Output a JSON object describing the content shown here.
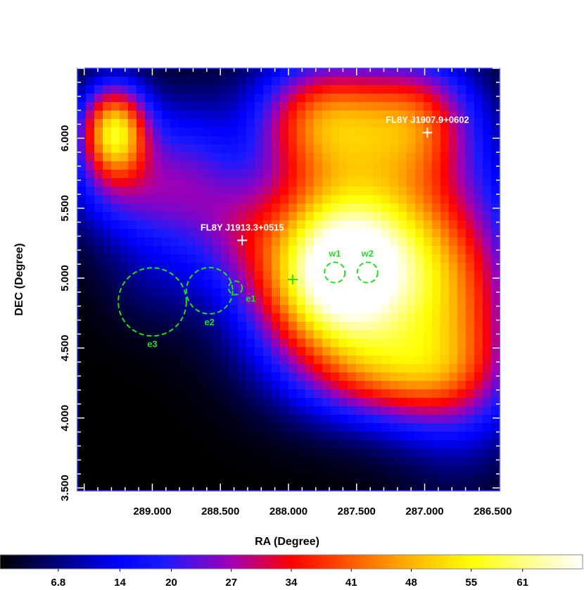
{
  "chart_data": {
    "type": "heatmap",
    "xlabel": "RA (Degree)",
    "ylabel": "DEC (Degree)",
    "xlim": [
      289.55,
      286.45
    ],
    "ylim": [
      3.48,
      6.5
    ],
    "x_ticks": [
      {
        "value": 289.0,
        "label": "289.000"
      },
      {
        "value": 288.5,
        "label": "288.500"
      },
      {
        "value": 288.0,
        "label": "288.000"
      },
      {
        "value": 287.5,
        "label": "287.500"
      },
      {
        "value": 287.0,
        "label": "287.000"
      },
      {
        "value": 286.5,
        "label": "286.500"
      }
    ],
    "y_ticks": [
      {
        "value": 3.5,
        "label": "3.500"
      },
      {
        "value": 4.0,
        "label": "4.000"
      },
      {
        "value": 4.5,
        "label": "4.500"
      },
      {
        "value": 5.0,
        "label": "5.000"
      },
      {
        "value": 5.5,
        "label": "5.500"
      },
      {
        "value": 6.0,
        "label": "6.000"
      }
    ],
    "colorbar": {
      "min": 0,
      "max": 68,
      "tick_values": [
        6.8,
        14,
        20,
        27,
        34,
        41,
        48,
        55,
        61
      ],
      "tick_labels": [
        "6.8",
        "14",
        "20",
        "27",
        "34",
        "41",
        "48",
        "55",
        "61"
      ],
      "colormap_stops": [
        {
          "v": 0,
          "color": "#000000"
        },
        {
          "v": 14,
          "color": "#0000ff"
        },
        {
          "v": 19,
          "color": "#1a1aff"
        },
        {
          "v": 27,
          "color": "#a000b4"
        },
        {
          "v": 34,
          "color": "#ff0000"
        },
        {
          "v": 41,
          "color": "#ff5a00"
        },
        {
          "v": 48,
          "color": "#ffb400"
        },
        {
          "v": 55,
          "color": "#ffff00"
        },
        {
          "v": 61,
          "color": "#ffff80"
        },
        {
          "v": 68,
          "color": "#ffffff"
        }
      ]
    },
    "intensity_components": [
      {
        "ra": 287.62,
        "dec": 5.0,
        "amp": 66,
        "sx": 0.45,
        "sy": 0.45
      },
      {
        "ra": 287.3,
        "dec": 5.55,
        "amp": 22,
        "sx": 0.55,
        "sy": 0.55
      },
      {
        "ra": 287.75,
        "dec": 6.15,
        "amp": 34,
        "sx": 0.35,
        "sy": 0.3
      },
      {
        "ra": 287.05,
        "dec": 6.15,
        "amp": 26,
        "sx": 0.3,
        "sy": 0.3
      },
      {
        "ra": 286.75,
        "dec": 4.7,
        "amp": 30,
        "sx": 0.35,
        "sy": 0.6
      },
      {
        "ra": 287.2,
        "dec": 4.3,
        "amp": 24,
        "sx": 0.45,
        "sy": 0.25
      },
      {
        "ra": 289.28,
        "dec": 6.05,
        "amp": 52,
        "sx": 0.18,
        "sy": 0.24
      },
      {
        "ra": 289.15,
        "dec": 5.6,
        "amp": 16,
        "sx": 0.35,
        "sy": 0.25
      },
      {
        "ra": 288.75,
        "dec": 5.85,
        "amp": 14,
        "sx": 0.25,
        "sy": 0.35
      },
      {
        "ra": 288.4,
        "dec": 5.4,
        "amp": 12,
        "sx": 0.25,
        "sy": 0.3
      },
      {
        "ra": 288.95,
        "dec": 5.1,
        "amp": 8,
        "sx": 0.3,
        "sy": 0.3
      }
    ],
    "point_sources": [
      {
        "name": "FL8Y J1907.9+0602",
        "ra": 286.98,
        "dec": 6.04,
        "color": "#ffffff"
      },
      {
        "name": "FL8Y J1913.3+0515",
        "ra": 288.34,
        "dec": 5.27,
        "color": "#ffffff"
      },
      {
        "name": "",
        "ra": 287.97,
        "dec": 4.99,
        "color": "#22dd22"
      }
    ],
    "regions": [
      {
        "label": "w1",
        "ra": 287.66,
        "dec": 5.04,
        "radius": 0.075
      },
      {
        "label": "w2",
        "ra": 287.42,
        "dec": 5.04,
        "radius": 0.075
      },
      {
        "label": "e1",
        "ra": 288.39,
        "dec": 4.93,
        "radius": 0.05
      },
      {
        "label": "e2",
        "ra": 288.58,
        "dec": 4.91,
        "radius": 0.17
      },
      {
        "label": "e3",
        "ra": 289.0,
        "dec": 4.83,
        "radius": 0.25
      }
    ],
    "region_color": "#22dd22"
  }
}
